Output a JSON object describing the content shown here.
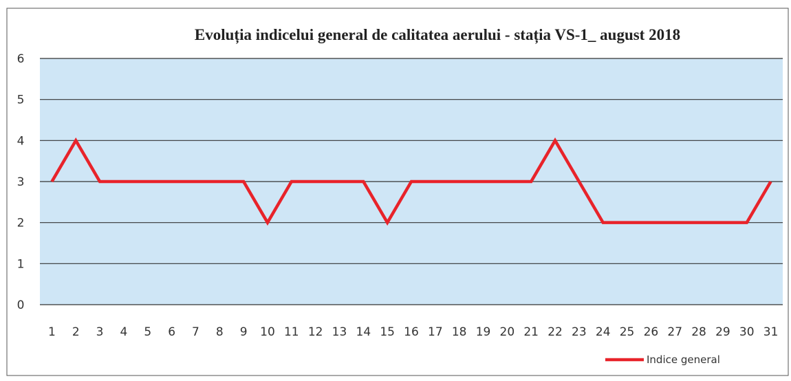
{
  "chart_data": {
    "type": "line",
    "title": "Evoluția indicelui general de calitatea aerului - stația VS-1_ august 2018",
    "categories": [
      "1",
      "2",
      "3",
      "4",
      "5",
      "6",
      "7",
      "8",
      "9",
      "10",
      "11",
      "12",
      "13",
      "14",
      "15",
      "16",
      "17",
      "18",
      "19",
      "20",
      "21",
      "22",
      "23",
      "24",
      "25",
      "26",
      "27",
      "28",
      "29",
      "30",
      "31"
    ],
    "series": [
      {
        "name": "Indice general",
        "color": "#e8232a",
        "values": [
          3,
          4,
          3,
          3,
          3,
          3,
          3,
          3,
          3,
          2,
          3,
          3,
          3,
          3,
          2,
          3,
          3,
          3,
          3,
          3,
          3,
          4,
          3,
          2,
          2,
          2,
          2,
          2,
          2,
          2,
          3
        ]
      }
    ],
    "ylim": [
      0,
      6
    ],
    "yticks": [
      0,
      1,
      2,
      3,
      4,
      5,
      6
    ],
    "grid": true,
    "legend": "bottom-right"
  }
}
